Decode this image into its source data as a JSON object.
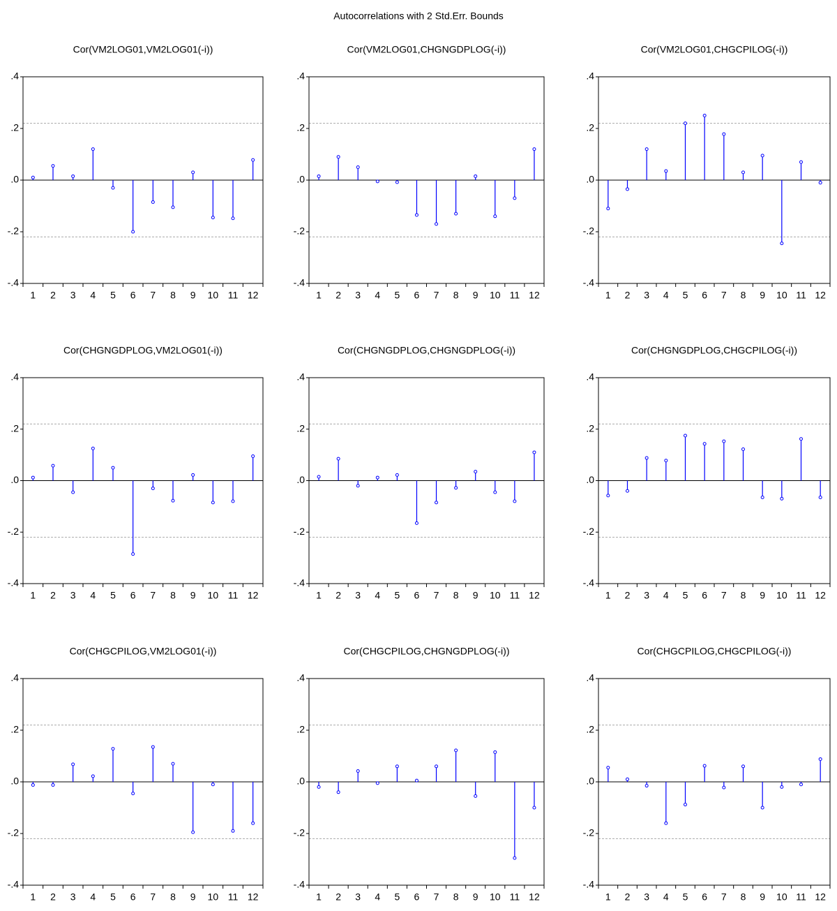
{
  "title": "Autocorrelations with 2 Std.Err. Bounds",
  "chart_data": [
    {
      "type": "stem",
      "title": "Cor(VM2LOG01,VM2LOG01(-i))",
      "color": "#0000ff",
      "bounds": [
        0.22,
        -0.22
      ],
      "categories": [
        1,
        2,
        3,
        4,
        5,
        6,
        7,
        8,
        9,
        10,
        11,
        12
      ],
      "values": [
        0.01,
        0.055,
        0.015,
        0.12,
        -0.03,
        -0.2,
        -0.085,
        -0.105,
        0.03,
        -0.145,
        -0.148,
        0.078
      ],
      "ylim": [
        -0.4,
        0.4
      ],
      "yticks": [
        {
          "value": -0.4,
          "label": "-.4"
        },
        {
          "value": -0.2,
          "label": "-.2"
        },
        {
          "value": 0,
          "label": ".0"
        },
        {
          "value": 0.2,
          "label": ".2"
        },
        {
          "value": 0.4,
          "label": ".4"
        }
      ]
    },
    {
      "type": "stem",
      "title": "Cor(VM2LOG01,CHGNGDPLOG(-i))",
      "color": "#0000ff",
      "bounds": [
        0.22,
        -0.22
      ],
      "categories": [
        1,
        2,
        3,
        4,
        5,
        6,
        7,
        8,
        9,
        10,
        11,
        12
      ],
      "values": [
        0.015,
        0.09,
        0.05,
        -0.005,
        -0.008,
        -0.135,
        -0.17,
        -0.13,
        0.015,
        -0.14,
        -0.07,
        0.12
      ],
      "ylim": [
        -0.4,
        0.4
      ],
      "yticks": [
        {
          "value": -0.4,
          "label": "-.4"
        },
        {
          "value": -0.2,
          "label": "-.2"
        },
        {
          "value": 0,
          "label": ".0"
        },
        {
          "value": 0.2,
          "label": ".2"
        },
        {
          "value": 0.4,
          "label": ".4"
        }
      ]
    },
    {
      "type": "stem",
      "title": "Cor(VM2LOG01,CHGCPILOG(-i))",
      "color": "#0000ff",
      "bounds": [
        0.22,
        -0.22
      ],
      "categories": [
        1,
        2,
        3,
        4,
        5,
        6,
        7,
        8,
        9,
        10,
        11,
        12
      ],
      "values": [
        -0.11,
        -0.035,
        0.12,
        0.035,
        0.22,
        0.25,
        0.178,
        0.03,
        0.095,
        -0.245,
        0.07,
        -0.01
      ],
      "ylim": [
        -0.4,
        0.4
      ],
      "yticks": [
        {
          "value": -0.4,
          "label": "-.4"
        },
        {
          "value": -0.2,
          "label": "-.2"
        },
        {
          "value": 0,
          "label": ".0"
        },
        {
          "value": 0.2,
          "label": ".2"
        },
        {
          "value": 0.4,
          "label": ".4"
        }
      ]
    },
    {
      "type": "stem",
      "title": "Cor(CHGNGDPLOG,VM2LOG01(-i))",
      "color": "#0000ff",
      "bounds": [
        0.22,
        -0.22
      ],
      "categories": [
        1,
        2,
        3,
        4,
        5,
        6,
        7,
        8,
        9,
        10,
        11,
        12
      ],
      "values": [
        0.012,
        0.058,
        -0.045,
        0.125,
        0.05,
        -0.285,
        -0.03,
        -0.078,
        0.022,
        -0.085,
        -0.08,
        0.095
      ],
      "ylim": [
        -0.4,
        0.4
      ],
      "yticks": [
        {
          "value": -0.4,
          "label": "-.4"
        },
        {
          "value": -0.2,
          "label": "-.2"
        },
        {
          "value": 0,
          "label": ".0"
        },
        {
          "value": 0.2,
          "label": ".2"
        },
        {
          "value": 0.4,
          "label": ".4"
        }
      ]
    },
    {
      "type": "stem",
      "title": "Cor(CHGNGDPLOG,CHGNGDPLOG(-i))",
      "color": "#0000ff",
      "bounds": [
        0.22,
        -0.22
      ],
      "categories": [
        1,
        2,
        3,
        4,
        5,
        6,
        7,
        8,
        9,
        10,
        11,
        12
      ],
      "values": [
        0.015,
        0.085,
        -0.02,
        0.012,
        0.022,
        -0.165,
        -0.085,
        -0.028,
        0.035,
        -0.045,
        -0.08,
        0.11
      ],
      "ylim": [
        -0.4,
        0.4
      ],
      "yticks": [
        {
          "value": -0.4,
          "label": "-.4"
        },
        {
          "value": -0.2,
          "label": "-.2"
        },
        {
          "value": 0,
          "label": ".0"
        },
        {
          "value": 0.2,
          "label": ".2"
        },
        {
          "value": 0.4,
          "label": ".4"
        }
      ]
    },
    {
      "type": "stem",
      "title": "Cor(CHGNGDPLOG,CHGCPILOG(-i))",
      "color": "#0000ff",
      "bounds": [
        0.22,
        -0.22
      ],
      "categories": [
        1,
        2,
        3,
        4,
        5,
        6,
        7,
        8,
        9,
        10,
        11,
        12
      ],
      "values": [
        -0.058,
        -0.04,
        0.088,
        0.078,
        0.175,
        0.143,
        0.153,
        0.122,
        -0.065,
        -0.07,
        0.162,
        -0.065
      ],
      "ylim": [
        -0.4,
        0.4
      ],
      "yticks": [
        {
          "value": -0.4,
          "label": "-.4"
        },
        {
          "value": -0.2,
          "label": "-.2"
        },
        {
          "value": 0,
          "label": ".0"
        },
        {
          "value": 0.2,
          "label": ".2"
        },
        {
          "value": 0.4,
          "label": ".4"
        }
      ]
    },
    {
      "type": "stem",
      "title": "Cor(CHGCPILOG,VM2LOG01(-i))",
      "color": "#0000ff",
      "bounds": [
        0.22,
        -0.22
      ],
      "categories": [
        1,
        2,
        3,
        4,
        5,
        6,
        7,
        8,
        9,
        10,
        11,
        12
      ],
      "values": [
        -0.012,
        -0.012,
        0.068,
        0.022,
        0.128,
        -0.045,
        0.135,
        0.07,
        -0.195,
        -0.01,
        -0.19,
        -0.16
      ],
      "ylim": [
        -0.4,
        0.4
      ],
      "yticks": [
        {
          "value": -0.4,
          "label": "-.4"
        },
        {
          "value": -0.2,
          "label": "-.2"
        },
        {
          "value": 0,
          "label": ".0"
        },
        {
          "value": 0.2,
          "label": ".2"
        },
        {
          "value": 0.4,
          "label": ".4"
        }
      ]
    },
    {
      "type": "stem",
      "title": "Cor(CHGCPILOG,CHGNGDPLOG(-i))",
      "color": "#0000ff",
      "bounds": [
        0.22,
        -0.22
      ],
      "categories": [
        1,
        2,
        3,
        4,
        5,
        6,
        7,
        8,
        9,
        10,
        11,
        12
      ],
      "values": [
        -0.02,
        -0.04,
        0.042,
        -0.005,
        0.06,
        0.005,
        0.06,
        0.122,
        -0.055,
        0.115,
        -0.295,
        -0.1
      ],
      "ylim": [
        -0.4,
        0.4
      ],
      "yticks": [
        {
          "value": -0.4,
          "label": "-.4"
        },
        {
          "value": -0.2,
          "label": "-.2"
        },
        {
          "value": 0,
          "label": ".0"
        },
        {
          "value": 0.2,
          "label": ".2"
        },
        {
          "value": 0.4,
          "label": ".4"
        }
      ]
    },
    {
      "type": "stem",
      "title": "Cor(CHGCPILOG,CHGCPILOG(-i))",
      "color": "#0000ff",
      "bounds": [
        0.22,
        -0.22
      ],
      "categories": [
        1,
        2,
        3,
        4,
        5,
        6,
        7,
        8,
        9,
        10,
        11,
        12
      ],
      "values": [
        0.055,
        0.01,
        -0.015,
        -0.16,
        -0.088,
        0.062,
        -0.022,
        0.06,
        -0.1,
        -0.02,
        -0.01,
        0.088
      ],
      "ylim": [
        -0.4,
        0.4
      ],
      "yticks": [
        {
          "value": -0.4,
          "label": "-.4"
        },
        {
          "value": -0.2,
          "label": "-.2"
        },
        {
          "value": 0,
          "label": ".0"
        },
        {
          "value": 0.2,
          "label": ".2"
        },
        {
          "value": 0.4,
          "label": ".4"
        }
      ]
    }
  ]
}
